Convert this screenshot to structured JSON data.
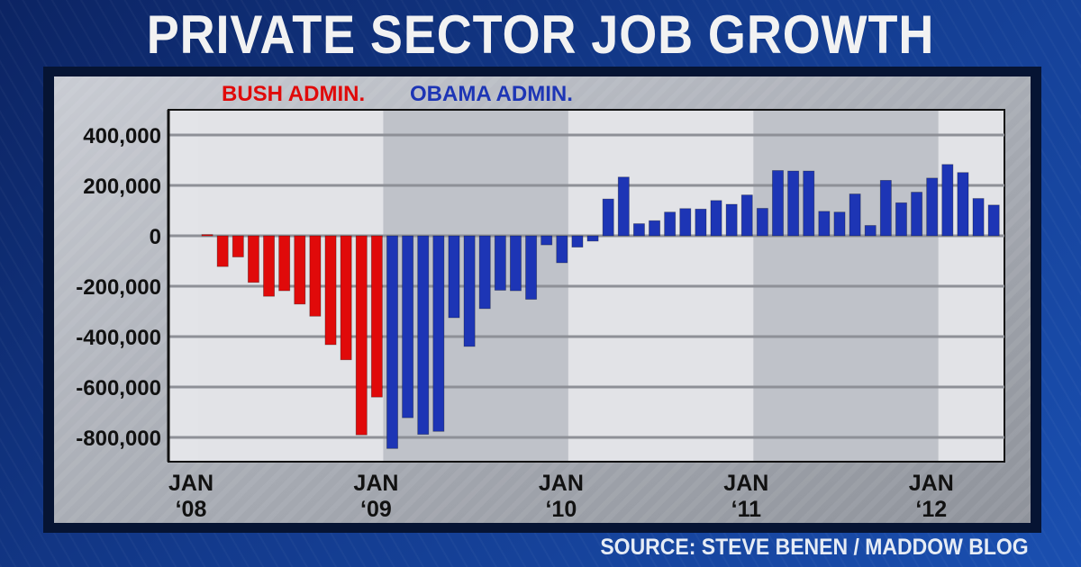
{
  "title": "PRIVATE SECTOR JOB GROWTH",
  "source": "SOURCE: STEVE BENEN / MADDOW BLOG",
  "colors": {
    "bush": "#e00a0a",
    "obama": "#1d35b5",
    "background": "#133a8c"
  },
  "chart_data": {
    "type": "bar",
    "title": "PRIVATE SECTOR JOB GROWTH",
    "legend": [
      {
        "label": "BUSH ADMIN.",
        "color": "#e00a0a"
      },
      {
        "label": "OBAMA ADMIN.",
        "color": "#1d35b5"
      }
    ],
    "legend_placement": "top-left",
    "ylim": [
      -880000,
      460000
    ],
    "yticks": [
      400000,
      200000,
      0,
      -200000,
      -400000,
      -600000,
      -800000
    ],
    "ytick_labels": [
      "400,000",
      "200,000",
      "0",
      "-200,000",
      "-400,000",
      "-600,000",
      "-800,000"
    ],
    "xtick_labels": [
      {
        "month": "JAN",
        "year": "‘08"
      },
      {
        "month": "JAN",
        "year": "‘09"
      },
      {
        "month": "JAN",
        "year": "‘10"
      },
      {
        "month": "JAN",
        "year": "‘11"
      },
      {
        "month": "JAN",
        "year": "‘12"
      }
    ],
    "grid": true,
    "start": "2008-01",
    "series": [
      {
        "name": "BUSH ADMIN.",
        "start": "2008-01",
        "values": [
          5000,
          -122000,
          -84000,
          -185000,
          -240000,
          -218000,
          -271000,
          -319000,
          -432000,
          -492000,
          -790000,
          -640000
        ]
      },
      {
        "name": "OBAMA ADMIN.",
        "start": "2009-01",
        "values": [
          -844000,
          -722000,
          -788000,
          -776000,
          -325000,
          -439000,
          -289000,
          -216000,
          -218000,
          -252000,
          -36000,
          -107000,
          -45000,
          -21000,
          146000,
          233000,
          48000,
          60000,
          94000,
          108000,
          106000,
          140000,
          125000,
          162000,
          109000,
          259000,
          257000,
          257000,
          97000,
          94000,
          166000,
          41000,
          220000,
          131000,
          173000,
          229000,
          283000,
          251000,
          148000,
          122000
        ]
      }
    ]
  }
}
